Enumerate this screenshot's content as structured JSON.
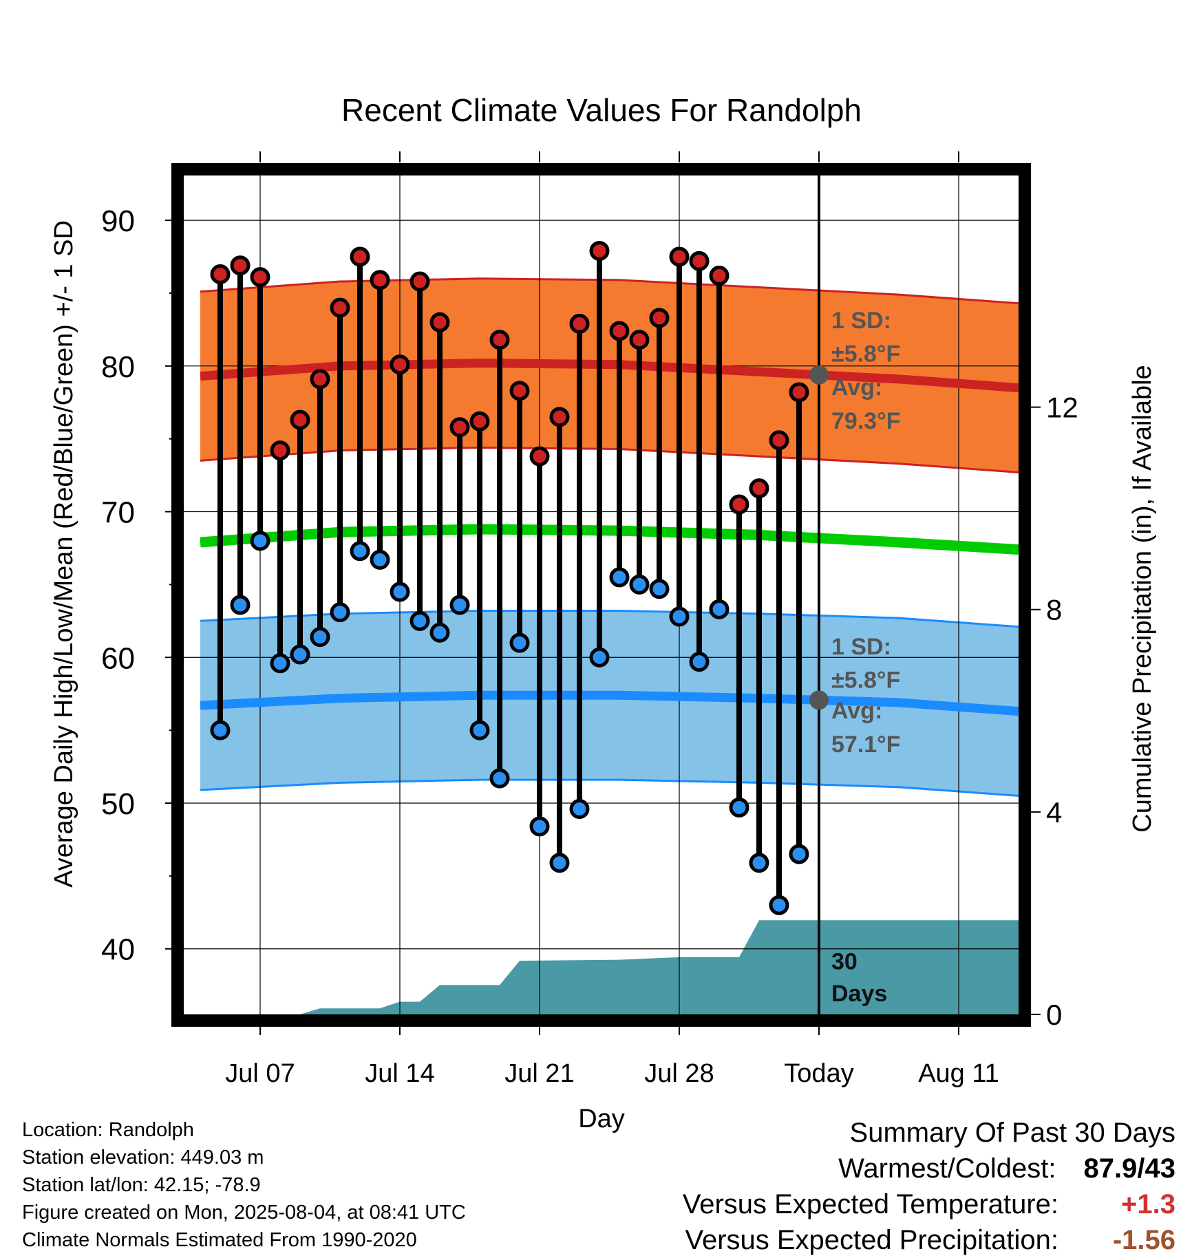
{
  "chart_data": {
    "type": "line",
    "title": "Recent Climate Values For Randolph",
    "xlabel": "Day",
    "ylabel": "Average Daily High/Low/Mean (Red/Blue/Green) +/- 1 SD",
    "y2label": "Cumulative Precipitation (in), If Available",
    "x_range": [
      "Jul 04",
      "Aug 14"
    ],
    "ylim": [
      35.5,
      93.5
    ],
    "y2lim": [
      0,
      16.7
    ],
    "x_ticks": [
      {
        "date": "Jul 07",
        "label": "Jul 07"
      },
      {
        "date": "Jul 14",
        "label": "Jul 14"
      },
      {
        "date": "Jul 21",
        "label": "Jul 21"
      },
      {
        "date": "Jul 28",
        "label": "Jul 28"
      },
      {
        "date": "Aug 04",
        "label": "Today"
      },
      {
        "date": "Aug 11",
        "label": "Aug 11"
      }
    ],
    "y_ticks": [
      40,
      50,
      60,
      70,
      80,
      90
    ],
    "y2_ticks": [
      0,
      4,
      8,
      12
    ],
    "grid": true,
    "today": "Aug 04",
    "series": [
      {
        "name": "High",
        "color": "#cc2222",
        "dates": [
          "Jul 05",
          "Jul 06",
          "Jul 07",
          "Jul 08",
          "Jul 09",
          "Jul 10",
          "Jul 11",
          "Jul 12",
          "Jul 13",
          "Jul 14",
          "Jul 15",
          "Jul 16",
          "Jul 17",
          "Jul 18",
          "Jul 19",
          "Jul 20",
          "Jul 21",
          "Jul 22",
          "Jul 23",
          "Jul 24",
          "Jul 25",
          "Jul 26",
          "Jul 27",
          "Jul 28",
          "Jul 29",
          "Jul 30",
          "Jul 31",
          "Aug 01",
          "Aug 02",
          "Aug 03"
        ],
        "values": [
          86.3,
          86.9,
          86.1,
          74.2,
          76.3,
          79.1,
          84.0,
          87.5,
          85.9,
          80.1,
          85.8,
          83.0,
          75.8,
          76.2,
          81.8,
          78.3,
          73.8,
          76.5,
          82.9,
          87.9,
          82.4,
          81.8,
          83.3,
          87.5,
          87.2,
          86.2,
          70.5,
          71.6,
          74.9,
          78.2
        ]
      },
      {
        "name": "Low",
        "color": "#2a8ff0",
        "dates": [
          "Jul 05",
          "Jul 06",
          "Jul 07",
          "Jul 08",
          "Jul 09",
          "Jul 10",
          "Jul 11",
          "Jul 12",
          "Jul 13",
          "Jul 14",
          "Jul 15",
          "Jul 16",
          "Jul 17",
          "Jul 18",
          "Jul 19",
          "Jul 20",
          "Jul 21",
          "Jul 22",
          "Jul 23",
          "Jul 24",
          "Jul 25",
          "Jul 26",
          "Jul 27",
          "Jul 28",
          "Jul 29",
          "Jul 30",
          "Jul 31",
          "Aug 01",
          "Aug 02",
          "Aug 03"
        ],
        "values": [
          55.0,
          63.6,
          68.0,
          59.6,
          60.2,
          61.4,
          63.1,
          67.3,
          66.7,
          64.5,
          62.5,
          61.7,
          63.6,
          55.0,
          51.7,
          61.0,
          48.4,
          45.9,
          49.6,
          60.0,
          65.5,
          65.0,
          64.7,
          62.8,
          59.7,
          63.3,
          49.7,
          45.9,
          43.0,
          46.5
        ]
      },
      {
        "name": "Normal High",
        "color": "#cc2222",
        "dates": [
          "Jul 04",
          "Jul 11",
          "Jul 18",
          "Jul 25",
          "Aug 01",
          "Aug 08",
          "Aug 14"
        ],
        "values": [
          79.3,
          80.0,
          80.2,
          80.1,
          79.6,
          79.1,
          78.5
        ],
        "sd": 5.8
      },
      {
        "name": "Normal Mean",
        "color": "#00cc00",
        "dates": [
          "Jul 04",
          "Jul 11",
          "Jul 18",
          "Jul 25",
          "Aug 01",
          "Aug 08",
          "Aug 14"
        ],
        "values": [
          67.9,
          68.6,
          68.8,
          68.7,
          68.4,
          67.9,
          67.4
        ]
      },
      {
        "name": "Normal Low",
        "color": "#1a8cff",
        "dates": [
          "Jul 04",
          "Jul 11",
          "Jul 18",
          "Jul 25",
          "Aug 01",
          "Aug 08",
          "Aug 14"
        ],
        "values": [
          56.7,
          57.2,
          57.4,
          57.4,
          57.2,
          56.9,
          56.3
        ],
        "sd": 5.8
      },
      {
        "name": "Cumulative Precipitation",
        "color": "#4a9aa5",
        "axis": "y2",
        "dates": [
          "Jul 04",
          "Jul 09",
          "Jul 10",
          "Jul 13",
          "Jul 14",
          "Jul 15",
          "Jul 16",
          "Jul 18",
          "Jul 19",
          "Jul 20",
          "Jul 25",
          "Jul 28",
          "Jul 31",
          "Aug 01",
          "Aug 14"
        ],
        "values": [
          0.0,
          0.0,
          0.12,
          0.12,
          0.25,
          0.25,
          0.58,
          0.58,
          0.58,
          1.06,
          1.08,
          1.13,
          1.13,
          1.86,
          1.86
        ]
      }
    ],
    "annotations": {
      "high_sd_label": "1 SD:",
      "high_sd_value": "±5.8°F",
      "high_avg_label": "Avg:",
      "high_avg_value": "79.3°F",
      "low_sd_label": "1 SD:",
      "low_sd_value": "±5.8°F",
      "low_avg_label": "Avg:",
      "low_avg_value": "57.1°F",
      "precip_line1": "30",
      "precip_line2": "Days"
    },
    "colors": {
      "high_band": "#f47a30",
      "high_line": "#cc2222",
      "low_band": "#85c2e8",
      "low_line": "#1a8cff",
      "mean_line": "#00cc00",
      "precip": "#4a9aa5",
      "annotation": "#555555"
    }
  },
  "info": {
    "location": "Location: Randolph",
    "elevation": "Station elevation: 449.03 m",
    "latlon": "Station lat/lon: 42.15; -78.9",
    "created": "Figure created on Mon, 2025-08-04, at 08:41 UTC",
    "normals": "Climate Normals Estimated From 1990-2020"
  },
  "summary": {
    "title": "Summary Of Past 30 Days",
    "warmest_label": "Warmest/Coldest:",
    "warmest_value": "87.9/43",
    "temp_label": "Versus Expected Temperature:",
    "temp_value": "+1.3",
    "temp_color": "#d33030",
    "precip_label": "Versus Expected Precipitation:",
    "precip_value": "-1.56",
    "precip_color": "#a0522d"
  }
}
